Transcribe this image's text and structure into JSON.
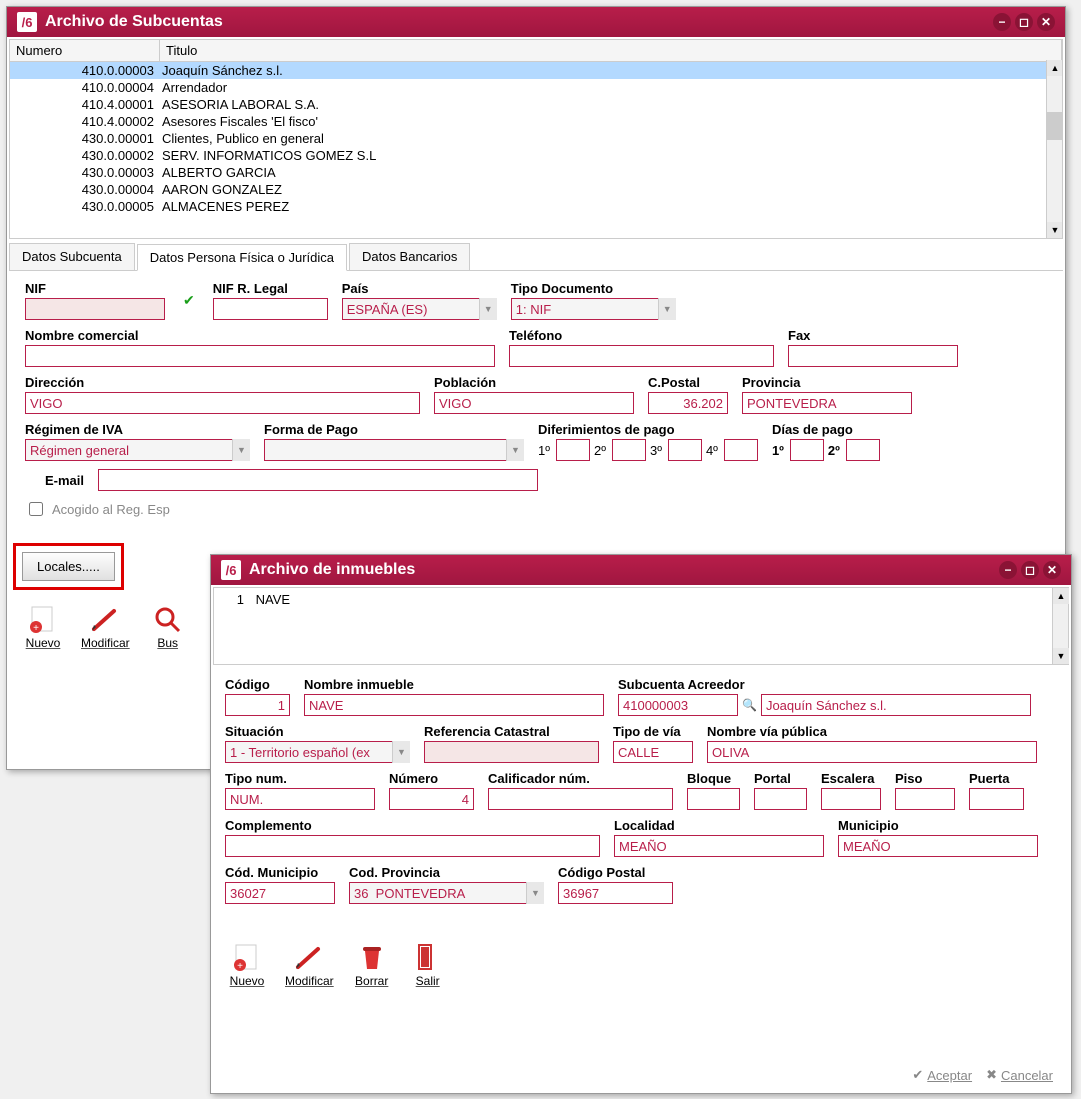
{
  "window1": {
    "title": "Archivo de Subcuentas",
    "list": {
      "header_numero": "Numero",
      "header_titulo": "Titulo",
      "rows": [
        {
          "numero": "410.0.00003",
          "titulo": "Joaquín Sánchez s.l.",
          "selected": true
        },
        {
          "numero": "410.0.00004",
          "titulo": "Arrendador"
        },
        {
          "numero": "410.4.00001",
          "titulo": "ASESORIA LABORAL S.A."
        },
        {
          "numero": "410.4.00002",
          "titulo": "Asesores Fiscales 'El fisco'"
        },
        {
          "numero": "430.0.00001",
          "titulo": "Clientes, Publico en general"
        },
        {
          "numero": "430.0.00002",
          "titulo": "SERV. INFORMATICOS GOMEZ S.L"
        },
        {
          "numero": "430.0.00003",
          "titulo": "ALBERTO GARCIA"
        },
        {
          "numero": "430.0.00004",
          "titulo": "AARON GONZALEZ"
        },
        {
          "numero": "430.0.00005",
          "titulo": "ALMACENES PEREZ"
        }
      ]
    },
    "tabs": {
      "t1": "Datos Subcuenta",
      "t2": "Datos Persona Física o Jurídica",
      "t3": "Datos Bancarios"
    },
    "form": {
      "nif_label": "NIF",
      "nif_value": "",
      "nif_rlegal_label": "NIF R. Legal",
      "nif_rlegal_value": "",
      "pais_label": "País",
      "pais_value": "ESPAÑA (ES)",
      "tipo_doc_label": "Tipo Documento",
      "tipo_doc_value": "1: NIF",
      "nombre_com_label": "Nombre comercial",
      "nombre_com_value": "",
      "telefono_label": "Teléfono",
      "telefono_value": "",
      "fax_label": "Fax",
      "fax_value": "",
      "direccion_label": "Dirección",
      "direccion_value": "VIGO",
      "poblacion_label": "Población",
      "poblacion_value": "VIGO",
      "cpostal_label": "C.Postal",
      "cpostal_value": "36.202",
      "provincia_label": "Provincia",
      "provincia_value": "PONTEVEDRA",
      "regimen_label": "Régimen de IVA",
      "regimen_value": "Régimen general",
      "forma_pago_label": "Forma de Pago",
      "forma_pago_value": "",
      "dif_pago_label": "Diferimientos de pago",
      "dias_pago_label": "Días de pago",
      "d1": "1º",
      "d2": "2º",
      "d3": "3º",
      "d4": "4º",
      "dp1": "1º",
      "dp2": "2º",
      "email_label": "E-mail",
      "email_value": "",
      "acogido_label": "Acogido al Reg. Esp",
      "locales_btn": "Locales....."
    },
    "toolbar": {
      "nuevo": "Nuevo",
      "modificar": "Modificar",
      "buscar": "Bus"
    }
  },
  "window2": {
    "title": "Archivo de inmuebles",
    "list": {
      "row_num": "1",
      "row_name": "NAVE"
    },
    "form": {
      "codigo_label": "Código",
      "codigo_value": "1",
      "nombre_inm_label": "Nombre inmueble",
      "nombre_inm_value": "NAVE",
      "subcuenta_label": "Subcuenta Acreedor",
      "subcuenta_value": "410000003",
      "subcuenta_name": "Joaquín Sánchez s.l.",
      "situacion_label": "Situación",
      "situacion_value": "1 - Territorio español (ex",
      "ref_cat_label": "Referencia Catastral",
      "ref_cat_value": "",
      "tipo_via_label": "Tipo de vía",
      "tipo_via_value": "CALLE",
      "nombre_via_label": "Nombre vía pública",
      "nombre_via_value": "OLIVA",
      "tipo_num_label": "Tipo num.",
      "tipo_num_value": "NUM.",
      "numero_label": "Número",
      "numero_value": "4",
      "calificador_label": "Calificador núm.",
      "calificador_value": "",
      "bloque_label": "Bloque",
      "portal_label": "Portal",
      "escalera_label": "Escalera",
      "piso_label": "Piso",
      "puerta_label": "Puerta",
      "complemento_label": "Complemento",
      "complemento_value": "",
      "localidad_label": "Localidad",
      "localidad_value": "MEAÑO",
      "municipio_label": "Municipio",
      "municipio_value": "MEAÑO",
      "cod_municipio_label": "Cód. Municipio",
      "cod_municipio_value": "36027",
      "cod_provincia_label": "Cod. Provincia",
      "cod_provincia_value": "36  PONTEVEDRA",
      "cod_postal_label": "Código Postal",
      "cod_postal_value": "36967"
    },
    "toolbar": {
      "nuevo": "Nuevo",
      "modificar": "Modificar",
      "borrar": "Borrar",
      "salir": "Salir"
    },
    "footer": {
      "aceptar": "Aceptar",
      "cancelar": "Cancelar"
    }
  },
  "colors": {
    "brand": "#b81e4a",
    "selected_row": "#b3d9ff",
    "highlight": "#d00"
  }
}
